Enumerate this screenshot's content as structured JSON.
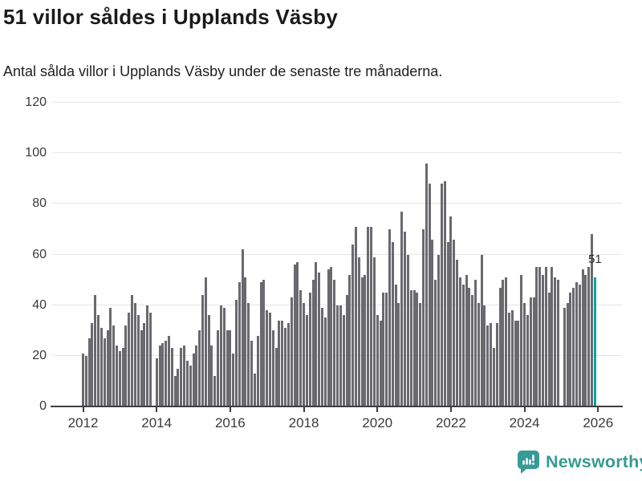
{
  "header": {
    "title": "51 villor såldes i Upplands Väsby",
    "subtitle": "Antal sålda villor i Upplands Väsby under de senaste tre månaderna."
  },
  "chart_data": {
    "type": "bar",
    "title": "51 villor såldes i Upplands Väsby",
    "subtitle": "Antal sålda villor i Upplands Väsby under de senaste tre månaderna.",
    "x_start": "2012-01",
    "x_interval": "month",
    "xticks": [
      "2012",
      "2014",
      "2016",
      "2018",
      "2020",
      "2022",
      "2024",
      "2026"
    ],
    "yticks": [
      0,
      20,
      40,
      60,
      80,
      100,
      120
    ],
    "ylim": [
      0,
      120
    ],
    "grid": true,
    "values": [
      21,
      20,
      27,
      33,
      44,
      36,
      31,
      27,
      30,
      39,
      32,
      24,
      22,
      23,
      32,
      37,
      44,
      41,
      36,
      30,
      33,
      40,
      37,
      0,
      19,
      24,
      25,
      26,
      28,
      23,
      12,
      15,
      23,
      24,
      18,
      16,
      21,
      24,
      30,
      44,
      51,
      36,
      24,
      12,
      30,
      40,
      39,
      30,
      30,
      21,
      42,
      49,
      62,
      51,
      41,
      26,
      13,
      28,
      49,
      50,
      38,
      37,
      30,
      23,
      34,
      34,
      31,
      33,
      43,
      56,
      57,
      46,
      41,
      36,
      45,
      50,
      57,
      53,
      39,
      35,
      54,
      55,
      50,
      40,
      40,
      36,
      44,
      52,
      64,
      71,
      59,
      51,
      52,
      71,
      71,
      59,
      36,
      34,
      45,
      45,
      70,
      65,
      48,
      41,
      77,
      69,
      60,
      46,
      46,
      45,
      41,
      70,
      96,
      88,
      66,
      50,
      60,
      88,
      89,
      65,
      75,
      66,
      58,
      51,
      48,
      52,
      47,
      44,
      50,
      41,
      60,
      40,
      32,
      33,
      23,
      33,
      47,
      50,
      51,
      37,
      38,
      34,
      34,
      52,
      41,
      36,
      43,
      43,
      55,
      55,
      52,
      55,
      45,
      55,
      51,
      50,
      0,
      39,
      41,
      45,
      47,
      49,
      48,
      54,
      52,
      55,
      68,
      51
    ],
    "highlight": {
      "index": 167,
      "value": 51,
      "label": "51"
    },
    "colors": {
      "bar": "#69696e",
      "highlight": "#00a2a2",
      "grid": "#e4e4e4",
      "axis": "#3f3f3f",
      "tick_text": "#3a3a3a"
    }
  },
  "annotation": {
    "label": "51"
  },
  "footer": {
    "brand": "Newsworthy",
    "brand_color": "#389a94"
  }
}
